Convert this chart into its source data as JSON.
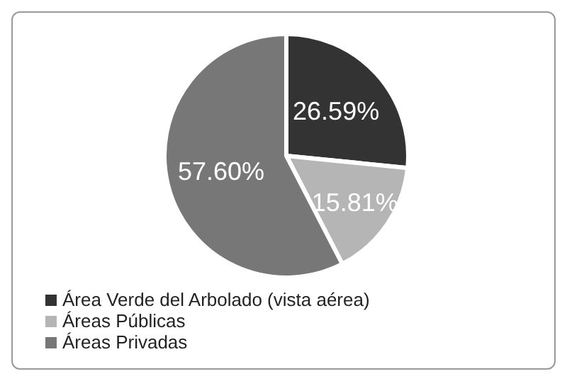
{
  "chart_data": {
    "type": "pie",
    "categories": [
      "Área Verde del Arbolado (vista aérea)",
      "Áreas Públicas",
      "Áreas Privadas"
    ],
    "values": [
      26.59,
      15.81,
      57.6
    ],
    "value_labels": [
      "26.59%",
      "15.81%",
      "57.60%"
    ],
    "colors": [
      "#333333",
      "#b5b5b5",
      "#777777"
    ],
    "legend": "bottom left"
  }
}
